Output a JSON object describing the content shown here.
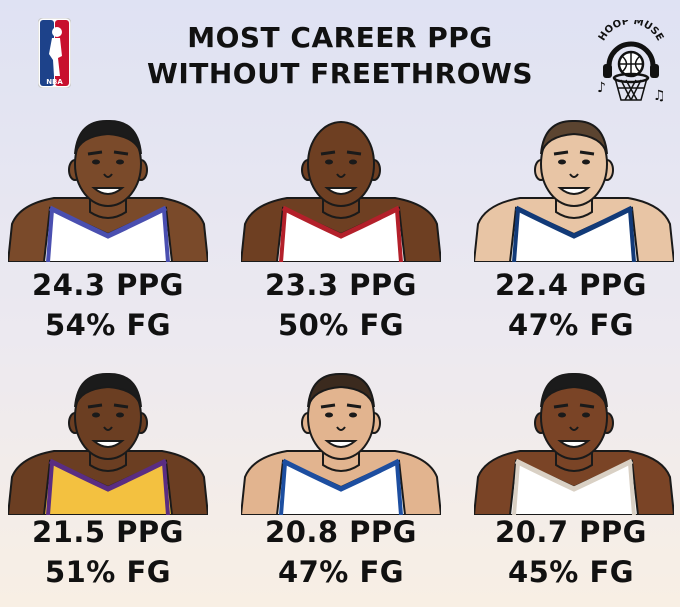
{
  "header": {
    "title_line1": "MOST CAREER PPG",
    "title_line2": "WITHOUT FREETHROWS",
    "nba_logo_text": "NBA",
    "brand_logo_text": "HOOP MUSE"
  },
  "players": [
    {
      "ppg": "24.3 PPG",
      "fg": "54% FG",
      "skin": "#7a4a2a",
      "jersey": "#ffffff",
      "trim": "#4a4fb0",
      "hair": "#1b1b1b"
    },
    {
      "ppg": "23.3 PPG",
      "fg": "50% FG",
      "skin": "#6e3f22",
      "jersey": "#ffffff",
      "trim": "#b3202a",
      "hair": "none"
    },
    {
      "ppg": "22.4 PPG",
      "fg": "47% FG",
      "skin": "#e8c5a5",
      "jersey": "#ffffff",
      "trim": "#123a78",
      "hair": "#5b4430"
    },
    {
      "ppg": "21.5 PPG",
      "fg": "51% FG",
      "skin": "#6b3e22",
      "jersey": "#f3c140",
      "trim": "#5a2d82",
      "hair": "#1b1b1b"
    },
    {
      "ppg": "20.8 PPG",
      "fg": "47% FG",
      "skin": "#e2b48f",
      "jersey": "#ffffff",
      "trim": "#1d4ea0",
      "hair": "#3b2a1e"
    },
    {
      "ppg": "20.7 PPG",
      "fg": "45% FG",
      "skin": "#7a4426",
      "jersey": "#ffffff",
      "trim": "#d9d0c4",
      "hair": "#1b1b1b"
    }
  ]
}
